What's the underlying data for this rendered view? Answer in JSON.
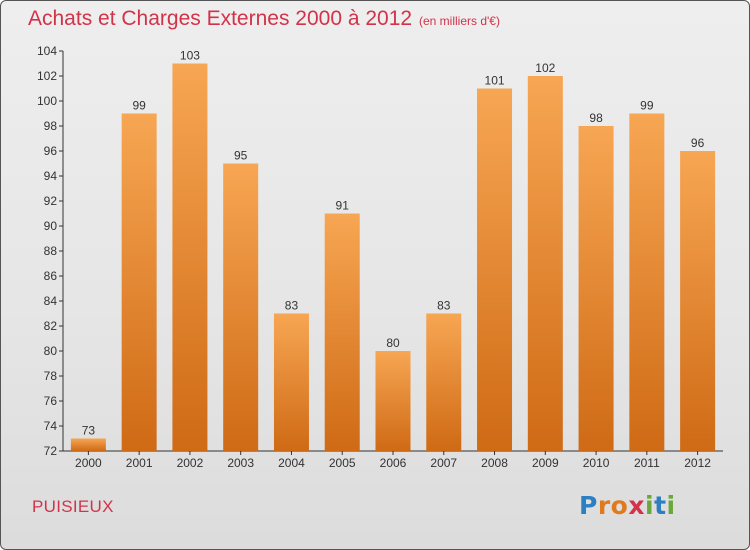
{
  "title": "Achats et Charges Externes 2000 à 2012",
  "subtitle": "(en milliers d'€)",
  "commune": "PUISIEUX",
  "logo": {
    "letters": [
      "P",
      "r",
      "o",
      "x",
      "i",
      "t",
      "i"
    ]
  },
  "colors": {
    "title": "#d2334a",
    "bar_top": "#f7a653",
    "bar_bottom": "#cf6a15"
  },
  "chart_data": {
    "type": "bar",
    "title": "Achats et Charges Externes 2000 à 2012",
    "subtitle": "(en milliers d'€)",
    "xlabel": "",
    "ylabel": "",
    "categories": [
      "2000",
      "2001",
      "2002",
      "2003",
      "2004",
      "2005",
      "2006",
      "2007",
      "2008",
      "2009",
      "2010",
      "2011",
      "2012"
    ],
    "values": [
      73,
      99,
      103,
      95,
      83,
      91,
      80,
      83,
      101,
      102,
      98,
      99,
      96
    ],
    "ylim": [
      72,
      104
    ],
    "yticks": [
      72,
      74,
      76,
      78,
      80,
      82,
      84,
      86,
      88,
      90,
      92,
      94,
      96,
      98,
      100,
      102,
      104
    ],
    "grid": false,
    "legend": "none"
  }
}
